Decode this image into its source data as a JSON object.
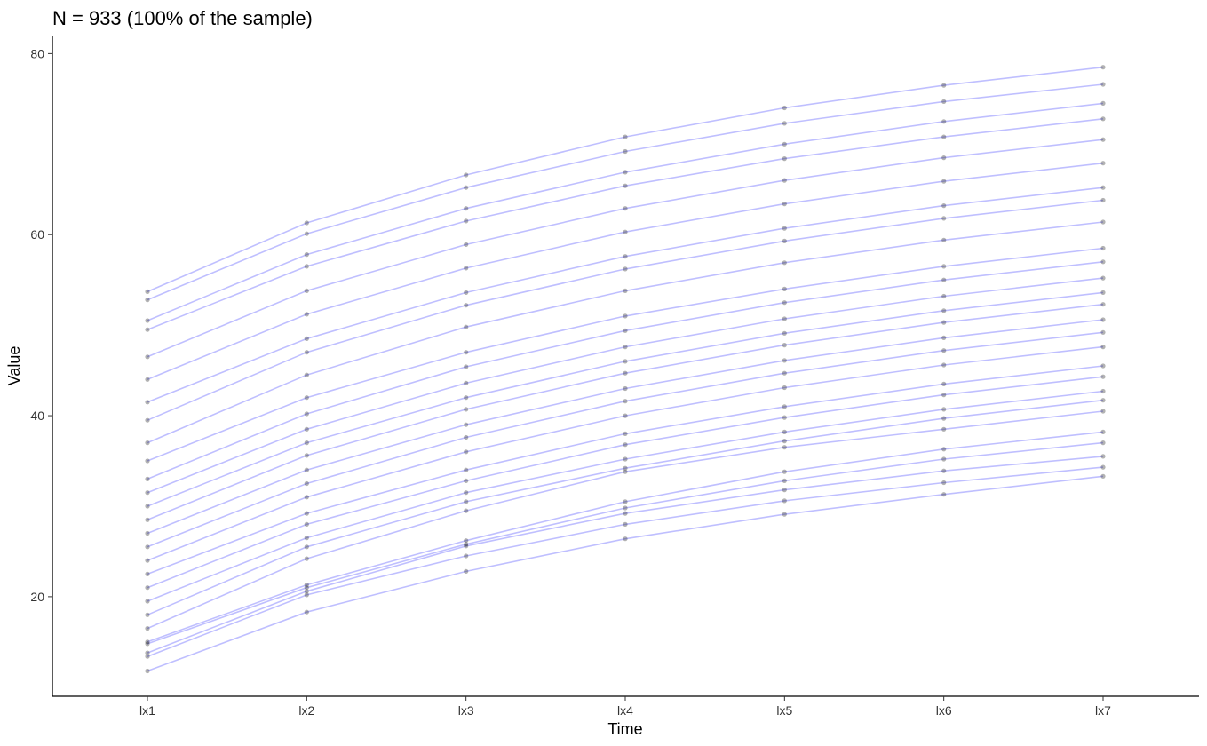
{
  "chart_data": {
    "type": "line",
    "title": "N = 933 (100% of the sample)",
    "xlabel": "Time",
    "ylabel": "Value",
    "categories": [
      "lx1",
      "lx2",
      "lx3",
      "lx4",
      "lx5",
      "lx6",
      "lx7"
    ],
    "yticks": [
      20,
      40,
      60,
      80
    ],
    "ylim": [
      9,
      82
    ],
    "n_trajectories": 933,
    "grid": false,
    "legend": "none",
    "line_color": "#0000ff",
    "point_color": "#000000",
    "series": [
      {
        "values": [
          53.7,
          61.3,
          66.6,
          70.8,
          74.0,
          76.5,
          78.5
        ]
      },
      {
        "values": [
          52.8,
          60.1,
          65.2,
          69.2,
          72.3,
          74.7,
          76.6
        ]
      },
      {
        "values": [
          50.5,
          57.8,
          62.9,
          66.9,
          70.0,
          72.5,
          74.5
        ]
      },
      {
        "values": [
          49.5,
          56.5,
          61.5,
          65.4,
          68.4,
          70.8,
          72.8
        ]
      },
      {
        "values": [
          46.5,
          53.8,
          58.9,
          62.9,
          66.0,
          68.5,
          70.5
        ]
      },
      {
        "values": [
          44.0,
          51.2,
          56.3,
          60.3,
          63.4,
          65.9,
          67.9
        ]
      },
      {
        "values": [
          41.5,
          48.5,
          53.6,
          57.6,
          60.7,
          63.2,
          65.2
        ]
      },
      {
        "values": [
          39.5,
          47.0,
          52.2,
          56.2,
          59.3,
          61.8,
          63.8
        ]
      },
      {
        "values": [
          37.0,
          44.5,
          49.8,
          53.8,
          56.9,
          59.4,
          61.4
        ]
      },
      {
        "values": [
          35.0,
          42.0,
          47.0,
          51.0,
          54.0,
          56.5,
          58.5
        ]
      },
      {
        "values": [
          33.0,
          40.2,
          45.4,
          49.4,
          52.5,
          55.0,
          57.0
        ]
      },
      {
        "values": [
          31.5,
          38.5,
          43.6,
          47.6,
          50.7,
          53.2,
          55.2
        ]
      },
      {
        "values": [
          30.0,
          37.0,
          42.0,
          46.0,
          49.1,
          51.6,
          53.6
        ]
      },
      {
        "values": [
          28.5,
          35.6,
          40.7,
          44.7,
          47.8,
          50.3,
          52.3
        ]
      },
      {
        "values": [
          27.0,
          34.0,
          39.0,
          43.0,
          46.1,
          48.6,
          50.6
        ]
      },
      {
        "values": [
          25.5,
          32.5,
          37.6,
          41.6,
          44.7,
          47.2,
          49.2
        ]
      },
      {
        "values": [
          24.0,
          31.0,
          36.0,
          40.0,
          43.1,
          45.6,
          47.6
        ]
      },
      {
        "values": [
          22.5,
          29.2,
          34.0,
          38.0,
          41.0,
          43.5,
          45.5
        ]
      },
      {
        "values": [
          21.0,
          28.0,
          32.8,
          36.8,
          39.8,
          42.3,
          44.3
        ]
      },
      {
        "values": [
          19.5,
          26.5,
          31.5,
          35.2,
          38.2,
          40.7,
          42.7
        ]
      },
      {
        "values": [
          18.0,
          25.5,
          30.5,
          34.2,
          37.2,
          39.7,
          41.7
        ]
      },
      {
        "values": [
          16.5,
          24.2,
          29.5,
          33.8,
          36.5,
          38.5,
          40.5
        ]
      },
      {
        "values": [
          15.0,
          21.3,
          26.2,
          30.5,
          33.8,
          36.3,
          38.2
        ]
      },
      {
        "values": [
          14.8,
          21.0,
          25.8,
          29.8,
          32.8,
          35.2,
          37.0
        ]
      },
      {
        "values": [
          13.8,
          20.6,
          25.6,
          29.2,
          31.8,
          33.9,
          35.5
        ]
      },
      {
        "values": [
          13.4,
          20.2,
          24.5,
          28.0,
          30.6,
          32.6,
          34.3
        ]
      },
      {
        "values": [
          11.8,
          18.3,
          22.8,
          26.4,
          29.1,
          31.3,
          33.3
        ]
      }
    ]
  }
}
